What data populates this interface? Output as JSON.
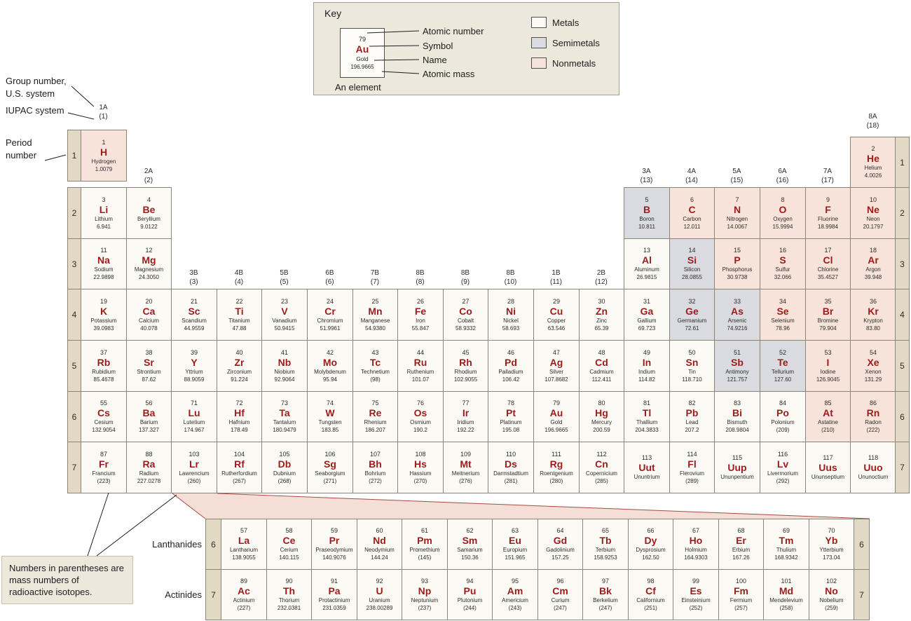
{
  "colors": {
    "metal": "#fbfaf4",
    "semimetal": "#d9dbe0",
    "nonmetal": "#f8e3da",
    "symbol_red": "#9e1b1b",
    "period_cell": "#e2d9c5",
    "box_bg": "#ece8db",
    "border": "#8b8577"
  },
  "key": {
    "title": "Key",
    "example": {
      "number": "79",
      "symbol": "Au",
      "name": "Gold",
      "mass": "196.9665"
    },
    "pointer_labels": [
      "Atomic number",
      "Symbol",
      "Name",
      "Atomic mass"
    ],
    "caption": "An element",
    "legend": [
      {
        "label": "Metals",
        "color": "#fbfaf4"
      },
      {
        "label": "Semimetals",
        "color": "#d9dbe0"
      },
      {
        "label": "Nonmetals",
        "color": "#f8e3da"
      }
    ]
  },
  "annotations": {
    "group_line1": "Group number,",
    "group_line2": "U.S. system",
    "iupac": "IUPAC system",
    "period_line1": "Period",
    "period_line2": "number",
    "note": "Numbers in parentheses are mass numbers of radioactive isotopes."
  },
  "f_block": {
    "lanthanides_label": "Lanthanides",
    "actinides_label": "Actinides",
    "lan_period": "6",
    "act_period": "7"
  },
  "period_rows": [
    "1",
    "2",
    "3",
    "4",
    "5",
    "6",
    "7"
  ],
  "group_labels": [
    {
      "us": "1A",
      "iupac": "(1)",
      "col": 1,
      "band": "r1"
    },
    {
      "us": "2A",
      "iupac": "(2)",
      "col": 2,
      "band": "r2"
    },
    {
      "us": "3B",
      "iupac": "(3)",
      "col": 3,
      "band": "r4"
    },
    {
      "us": "4B",
      "iupac": "(4)",
      "col": 4,
      "band": "r4"
    },
    {
      "us": "5B",
      "iupac": "(5)",
      "col": 5,
      "band": "r4"
    },
    {
      "us": "6B",
      "iupac": "(6)",
      "col": 6,
      "band": "r4"
    },
    {
      "us": "7B",
      "iupac": "(7)",
      "col": 7,
      "band": "r4"
    },
    {
      "us": "8B",
      "iupac": "(8)",
      "col": 8,
      "band": "r4"
    },
    {
      "us": "8B",
      "iupac": "(9)",
      "col": 9,
      "band": "r4"
    },
    {
      "us": "8B",
      "iupac": "(10)",
      "col": 10,
      "band": "r4"
    },
    {
      "us": "1B",
      "iupac": "(11)",
      "col": 11,
      "band": "r4"
    },
    {
      "us": "2B",
      "iupac": "(12)",
      "col": 12,
      "band": "r4"
    },
    {
      "us": "3A",
      "iupac": "(13)",
      "col": 13,
      "band": "r2"
    },
    {
      "us": "4A",
      "iupac": "(14)",
      "col": 14,
      "band": "r2"
    },
    {
      "us": "5A",
      "iupac": "(15)",
      "col": 15,
      "band": "r2"
    },
    {
      "us": "6A",
      "iupac": "(16)",
      "col": 16,
      "band": "r2"
    },
    {
      "us": "7A",
      "iupac": "(17)",
      "col": 17,
      "band": "r2"
    },
    {
      "us": "8A",
      "iupac": "(18)",
      "col": 18,
      "band": "he"
    }
  ],
  "elements": [
    {
      "z": "1",
      "sym": "H",
      "name": "Hydrogen",
      "mass": "1.0079",
      "cat": "n",
      "row": 1,
      "col": 1
    },
    {
      "z": "2",
      "sym": "He",
      "name": "Helium",
      "mass": "4.0026",
      "cat": "n",
      "row": 1,
      "col": 18
    },
    {
      "z": "3",
      "sym": "Li",
      "name": "Lithium",
      "mass": "6.941",
      "cat": "m",
      "row": 2,
      "col": 1
    },
    {
      "z": "4",
      "sym": "Be",
      "name": "Beryllium",
      "mass": "9.0122",
      "cat": "m",
      "row": 2,
      "col": 2
    },
    {
      "z": "5",
      "sym": "B",
      "name": "Boron",
      "mass": "10.811",
      "cat": "s",
      "row": 2,
      "col": 13
    },
    {
      "z": "6",
      "sym": "C",
      "name": "Carbon",
      "mass": "12.011",
      "cat": "n",
      "row": 2,
      "col": 14
    },
    {
      "z": "7",
      "sym": "N",
      "name": "Nitrogen",
      "mass": "14.0067",
      "cat": "n",
      "row": 2,
      "col": 15
    },
    {
      "z": "8",
      "sym": "O",
      "name": "Oxygen",
      "mass": "15.9994",
      "cat": "n",
      "row": 2,
      "col": 16
    },
    {
      "z": "9",
      "sym": "F",
      "name": "Fluorine",
      "mass": "18.9984",
      "cat": "n",
      "row": 2,
      "col": 17
    },
    {
      "z": "10",
      "sym": "Ne",
      "name": "Neon",
      "mass": "20.1797",
      "cat": "n",
      "row": 2,
      "col": 18
    },
    {
      "z": "11",
      "sym": "Na",
      "name": "Sodium",
      "mass": "22.9898",
      "cat": "m",
      "row": 3,
      "col": 1
    },
    {
      "z": "12",
      "sym": "Mg",
      "name": "Magnesium",
      "mass": "24.3050",
      "cat": "m",
      "row": 3,
      "col": 2
    },
    {
      "z": "13",
      "sym": "Al",
      "name": "Aluminum",
      "mass": "26.9815",
      "cat": "m",
      "row": 3,
      "col": 13
    },
    {
      "z": "14",
      "sym": "Si",
      "name": "Silicon",
      "mass": "28.0855",
      "cat": "s",
      "row": 3,
      "col": 14
    },
    {
      "z": "15",
      "sym": "P",
      "name": "Phosphorus",
      "mass": "30.9738",
      "cat": "n",
      "row": 3,
      "col": 15
    },
    {
      "z": "16",
      "sym": "S",
      "name": "Sulfur",
      "mass": "32.066",
      "cat": "n",
      "row": 3,
      "col": 16
    },
    {
      "z": "17",
      "sym": "Cl",
      "name": "Chlorine",
      "mass": "35.4527",
      "cat": "n",
      "row": 3,
      "col": 17
    },
    {
      "z": "18",
      "sym": "Ar",
      "name": "Argon",
      "mass": "39.948",
      "cat": "n",
      "row": 3,
      "col": 18
    },
    {
      "z": "19",
      "sym": "K",
      "name": "Potassium",
      "mass": "39.0983",
      "cat": "m",
      "row": 4,
      "col": 1
    },
    {
      "z": "20",
      "sym": "Ca",
      "name": "Calcium",
      "mass": "40.078",
      "cat": "m",
      "row": 4,
      "col": 2
    },
    {
      "z": "21",
      "sym": "Sc",
      "name": "Scandium",
      "mass": "44.9559",
      "cat": "m",
      "row": 4,
      "col": 3
    },
    {
      "z": "22",
      "sym": "Ti",
      "name": "Titanium",
      "mass": "47.88",
      "cat": "m",
      "row": 4,
      "col": 4
    },
    {
      "z": "23",
      "sym": "V",
      "name": "Vanadium",
      "mass": "50.9415",
      "cat": "m",
      "row": 4,
      "col": 5
    },
    {
      "z": "24",
      "sym": "Cr",
      "name": "Chromium",
      "mass": "51.9961",
      "cat": "m",
      "row": 4,
      "col": 6
    },
    {
      "z": "25",
      "sym": "Mn",
      "name": "Manganese",
      "mass": "54.9380",
      "cat": "m",
      "row": 4,
      "col": 7
    },
    {
      "z": "26",
      "sym": "Fe",
      "name": "Iron",
      "mass": "55.847",
      "cat": "m",
      "row": 4,
      "col": 8
    },
    {
      "z": "27",
      "sym": "Co",
      "name": "Cobalt",
      "mass": "58.9332",
      "cat": "m",
      "row": 4,
      "col": 9
    },
    {
      "z": "28",
      "sym": "Ni",
      "name": "Nickel",
      "mass": "58.693",
      "cat": "m",
      "row": 4,
      "col": 10
    },
    {
      "z": "29",
      "sym": "Cu",
      "name": "Copper",
      "mass": "63.546",
      "cat": "m",
      "row": 4,
      "col": 11
    },
    {
      "z": "30",
      "sym": "Zn",
      "name": "Zinc",
      "mass": "65.39",
      "cat": "m",
      "row": 4,
      "col": 12
    },
    {
      "z": "31",
      "sym": "Ga",
      "name": "Gallium",
      "mass": "69.723",
      "cat": "m",
      "row": 4,
      "col": 13
    },
    {
      "z": "32",
      "sym": "Ge",
      "name": "Germanium",
      "mass": "72.61",
      "cat": "s",
      "row": 4,
      "col": 14
    },
    {
      "z": "33",
      "sym": "As",
      "name": "Arsenic",
      "mass": "74.9216",
      "cat": "s",
      "row": 4,
      "col": 15
    },
    {
      "z": "34",
      "sym": "Se",
      "name": "Selenium",
      "mass": "78.96",
      "cat": "n",
      "row": 4,
      "col": 16
    },
    {
      "z": "35",
      "sym": "Br",
      "name": "Bromine",
      "mass": "79.904",
      "cat": "n",
      "row": 4,
      "col": 17
    },
    {
      "z": "36",
      "sym": "Kr",
      "name": "Krypton",
      "mass": "83.80",
      "cat": "n",
      "row": 4,
      "col": 18
    },
    {
      "z": "37",
      "sym": "Rb",
      "name": "Rubidium",
      "mass": "85.4678",
      "cat": "m",
      "row": 5,
      "col": 1
    },
    {
      "z": "38",
      "sym": "Sr",
      "name": "Strontium",
      "mass": "87.62",
      "cat": "m",
      "row": 5,
      "col": 2
    },
    {
      "z": "39",
      "sym": "Y",
      "name": "Yttrium",
      "mass": "88.9059",
      "cat": "m",
      "row": 5,
      "col": 3
    },
    {
      "z": "40",
      "sym": "Zr",
      "name": "Zirconium",
      "mass": "91.224",
      "cat": "m",
      "row": 5,
      "col": 4
    },
    {
      "z": "41",
      "sym": "Nb",
      "name": "Niobium",
      "mass": "92.9064",
      "cat": "m",
      "row": 5,
      "col": 5
    },
    {
      "z": "42",
      "sym": "Mo",
      "name": "Molybdenum",
      "mass": "95.94",
      "cat": "m",
      "row": 5,
      "col": 6
    },
    {
      "z": "43",
      "sym": "Tc",
      "name": "Technetium",
      "mass": "(98)",
      "cat": "m",
      "row": 5,
      "col": 7
    },
    {
      "z": "44",
      "sym": "Ru",
      "name": "Ruthenium",
      "mass": "101.07",
      "cat": "m",
      "row": 5,
      "col": 8
    },
    {
      "z": "45",
      "sym": "Rh",
      "name": "Rhodium",
      "mass": "102.9055",
      "cat": "m",
      "row": 5,
      "col": 9
    },
    {
      "z": "46",
      "sym": "Pd",
      "name": "Palladium",
      "mass": "106.42",
      "cat": "m",
      "row": 5,
      "col": 10
    },
    {
      "z": "47",
      "sym": "Ag",
      "name": "Silver",
      "mass": "107.8682",
      "cat": "m",
      "row": 5,
      "col": 11
    },
    {
      "z": "48",
      "sym": "Cd",
      "name": "Cadmium",
      "mass": "112.411",
      "cat": "m",
      "row": 5,
      "col": 12
    },
    {
      "z": "49",
      "sym": "In",
      "name": "Indium",
      "mass": "114.82",
      "cat": "m",
      "row": 5,
      "col": 13
    },
    {
      "z": "50",
      "sym": "Sn",
      "name": "Tin",
      "mass": "118.710",
      "cat": "m",
      "row": 5,
      "col": 14
    },
    {
      "z": "51",
      "sym": "Sb",
      "name": "Antimony",
      "mass": "121.757",
      "cat": "s",
      "row": 5,
      "col": 15
    },
    {
      "z": "52",
      "sym": "Te",
      "name": "Tellurium",
      "mass": "127.60",
      "cat": "s",
      "row": 5,
      "col": 16
    },
    {
      "z": "53",
      "sym": "I",
      "name": "Iodine",
      "mass": "126.9045",
      "cat": "n",
      "row": 5,
      "col": 17
    },
    {
      "z": "54",
      "sym": "Xe",
      "name": "Xenon",
      "mass": "131.29",
      "cat": "n",
      "row": 5,
      "col": 18
    },
    {
      "z": "55",
      "sym": "Cs",
      "name": "Cesium",
      "mass": "132.9054",
      "cat": "m",
      "row": 6,
      "col": 1
    },
    {
      "z": "56",
      "sym": "Ba",
      "name": "Barium",
      "mass": "137.327",
      "cat": "m",
      "row": 6,
      "col": 2
    },
    {
      "z": "71",
      "sym": "Lu",
      "name": "Lutetium",
      "mass": "174.967",
      "cat": "m",
      "row": 6,
      "col": 3
    },
    {
      "z": "72",
      "sym": "Hf",
      "name": "Hafnium",
      "mass": "178.49",
      "cat": "m",
      "row": 6,
      "col": 4
    },
    {
      "z": "73",
      "sym": "Ta",
      "name": "Tantalum",
      "mass": "180.9479",
      "cat": "m",
      "row": 6,
      "col": 5
    },
    {
      "z": "74",
      "sym": "W",
      "name": "Tungsten",
      "mass": "183.85",
      "cat": "m",
      "row": 6,
      "col": 6
    },
    {
      "z": "75",
      "sym": "Re",
      "name": "Rhenium",
      "mass": "186.207",
      "cat": "m",
      "row": 6,
      "col": 7
    },
    {
      "z": "76",
      "sym": "Os",
      "name": "Osmium",
      "mass": "190.2",
      "cat": "m",
      "row": 6,
      "col": 8
    },
    {
      "z": "77",
      "sym": "Ir",
      "name": "Iridium",
      "mass": "192.22",
      "cat": "m",
      "row": 6,
      "col": 9
    },
    {
      "z": "78",
      "sym": "Pt",
      "name": "Platinum",
      "mass": "195.08",
      "cat": "m",
      "row": 6,
      "col": 10
    },
    {
      "z": "79",
      "sym": "Au",
      "name": "Gold",
      "mass": "196.9665",
      "cat": "m",
      "row": 6,
      "col": 11
    },
    {
      "z": "80",
      "sym": "Hg",
      "name": "Mercury",
      "mass": "200.59",
      "cat": "m",
      "row": 6,
      "col": 12
    },
    {
      "z": "81",
      "sym": "Tl",
      "name": "Thallium",
      "mass": "204.3833",
      "cat": "m",
      "row": 6,
      "col": 13
    },
    {
      "z": "82",
      "sym": "Pb",
      "name": "Lead",
      "mass": "207.2",
      "cat": "m",
      "row": 6,
      "col": 14
    },
    {
      "z": "83",
      "sym": "Bi",
      "name": "Bismuth",
      "mass": "208.9804",
      "cat": "m",
      "row": 6,
      "col": 15
    },
    {
      "z": "84",
      "sym": "Po",
      "name": "Polonium",
      "mass": "(209)",
      "cat": "m",
      "row": 6,
      "col": 16
    },
    {
      "z": "85",
      "sym": "At",
      "name": "Astatine",
      "mass": "(210)",
      "cat": "n",
      "row": 6,
      "col": 17
    },
    {
      "z": "86",
      "sym": "Rn",
      "name": "Radon",
      "mass": "(222)",
      "cat": "n",
      "row": 6,
      "col": 18
    },
    {
      "z": "87",
      "sym": "Fr",
      "name": "Francium",
      "mass": "(223)",
      "cat": "m",
      "row": 7,
      "col": 1
    },
    {
      "z": "88",
      "sym": "Ra",
      "name": "Radium",
      "mass": "227.0278",
      "cat": "m",
      "row": 7,
      "col": 2
    },
    {
      "z": "103",
      "sym": "Lr",
      "name": "Lawrencium",
      "mass": "(260)",
      "cat": "m",
      "row": 7,
      "col": 3
    },
    {
      "z": "104",
      "sym": "Rf",
      "name": "Rutherfordium",
      "mass": "(267)",
      "cat": "m",
      "row": 7,
      "col": 4
    },
    {
      "z": "105",
      "sym": "Db",
      "name": "Dubnium",
      "mass": "(268)",
      "cat": "m",
      "row": 7,
      "col": 5
    },
    {
      "z": "106",
      "sym": "Sg",
      "name": "Seaborgium",
      "mass": "(271)",
      "cat": "m",
      "row": 7,
      "col": 6
    },
    {
      "z": "107",
      "sym": "Bh",
      "name": "Bohrium",
      "mass": "(272)",
      "cat": "m",
      "row": 7,
      "col": 7
    },
    {
      "z": "108",
      "sym": "Hs",
      "name": "Hassium",
      "mass": "(270)",
      "cat": "m",
      "row": 7,
      "col": 8
    },
    {
      "z": "109",
      "sym": "Mt",
      "name": "Meitnerium",
      "mass": "(276)",
      "cat": "m",
      "row": 7,
      "col": 9
    },
    {
      "z": "110",
      "sym": "Ds",
      "name": "Darmstadtium",
      "mass": "(281)",
      "cat": "m",
      "row": 7,
      "col": 10
    },
    {
      "z": "111",
      "sym": "Rg",
      "name": "Roentgenium",
      "mass": "(280)",
      "cat": "m",
      "row": 7,
      "col": 11
    },
    {
      "z": "112",
      "sym": "Cn",
      "name": "Copernicium",
      "mass": "(285)",
      "cat": "m",
      "row": 7,
      "col": 12
    },
    {
      "z": "113",
      "sym": "Uut",
      "name": "Ununtrium",
      "mass": "",
      "cat": "m",
      "row": 7,
      "col": 13
    },
    {
      "z": "114",
      "sym": "Fl",
      "name": "Flerovium",
      "mass": "(289)",
      "cat": "m",
      "row": 7,
      "col": 14
    },
    {
      "z": "115",
      "sym": "Uup",
      "name": "Ununpentium",
      "mass": "",
      "cat": "m",
      "row": 7,
      "col": 15
    },
    {
      "z": "116",
      "sym": "Lv",
      "name": "Livermorium",
      "mass": "(292)",
      "cat": "m",
      "row": 7,
      "col": 16
    },
    {
      "z": "117",
      "sym": "Uus",
      "name": "Ununseptium",
      "mass": "",
      "cat": "m",
      "row": 7,
      "col": 17
    },
    {
      "z": "118",
      "sym": "Uuo",
      "name": "Ununoctium",
      "mass": "",
      "cat": "m",
      "row": 7,
      "col": 18
    }
  ],
  "lanthanides": [
    {
      "z": "57",
      "sym": "La",
      "name": "Lanthanum",
      "mass": "138.9055",
      "cat": "m"
    },
    {
      "z": "58",
      "sym": "Ce",
      "name": "Cerium",
      "mass": "140.115",
      "cat": "m"
    },
    {
      "z": "59",
      "sym": "Pr",
      "name": "Praseodymium",
      "mass": "140.9076",
      "cat": "m"
    },
    {
      "z": "60",
      "sym": "Nd",
      "name": "Neodymium",
      "mass": "144.24",
      "cat": "m"
    },
    {
      "z": "61",
      "sym": "Pm",
      "name": "Promethium",
      "mass": "(145)",
      "cat": "m"
    },
    {
      "z": "62",
      "sym": "Sm",
      "name": "Samarium",
      "mass": "150.36",
      "cat": "m"
    },
    {
      "z": "63",
      "sym": "Eu",
      "name": "Europium",
      "mass": "151.965",
      "cat": "m"
    },
    {
      "z": "64",
      "sym": "Gd",
      "name": "Gadolinium",
      "mass": "157.25",
      "cat": "m"
    },
    {
      "z": "65",
      "sym": "Tb",
      "name": "Terbium",
      "mass": "158.9253",
      "cat": "m"
    },
    {
      "z": "66",
      "sym": "Dy",
      "name": "Dysprosium",
      "mass": "162.50",
      "cat": "m"
    },
    {
      "z": "67",
      "sym": "Ho",
      "name": "Holmium",
      "mass": "164.9303",
      "cat": "m"
    },
    {
      "z": "68",
      "sym": "Er",
      "name": "Erbium",
      "mass": "167.26",
      "cat": "m"
    },
    {
      "z": "69",
      "sym": "Tm",
      "name": "Thulium",
      "mass": "168.9342",
      "cat": "m"
    },
    {
      "z": "70",
      "sym": "Yb",
      "name": "Ytterbium",
      "mass": "173.04",
      "cat": "m"
    }
  ],
  "actinides": [
    {
      "z": "89",
      "sym": "Ac",
      "name": "Actinium",
      "mass": "(227)",
      "cat": "m"
    },
    {
      "z": "90",
      "sym": "Th",
      "name": "Thorium",
      "mass": "232.0381",
      "cat": "m"
    },
    {
      "z": "91",
      "sym": "Pa",
      "name": "Protactinium",
      "mass": "231.0359",
      "cat": "m"
    },
    {
      "z": "92",
      "sym": "U",
      "name": "Uranium",
      "mass": "238.00289",
      "cat": "m"
    },
    {
      "z": "93",
      "sym": "Np",
      "name": "Neptunium",
      "mass": "(237)",
      "cat": "m"
    },
    {
      "z": "94",
      "sym": "Pu",
      "name": "Plutonium",
      "mass": "(244)",
      "cat": "m"
    },
    {
      "z": "95",
      "sym": "Am",
      "name": "Americium",
      "mass": "(243)",
      "cat": "m"
    },
    {
      "z": "96",
      "sym": "Cm",
      "name": "Curium",
      "mass": "(247)",
      "cat": "m"
    },
    {
      "z": "97",
      "sym": "Bk",
      "name": "Berkelium",
      "mass": "(247)",
      "cat": "m"
    },
    {
      "z": "98",
      "sym": "Cf",
      "name": "Californium",
      "mass": "(251)",
      "cat": "m"
    },
    {
      "z": "99",
      "sym": "Es",
      "name": "Einsteinium",
      "mass": "(252)",
      "cat": "m"
    },
    {
      "z": "100",
      "sym": "Fm",
      "name": "Fermium",
      "mass": "(257)",
      "cat": "m"
    },
    {
      "z": "101",
      "sym": "Md",
      "name": "Mendelevium",
      "mass": "(258)",
      "cat": "m"
    },
    {
      "z": "102",
      "sym": "No",
      "name": "Nobelium",
      "mass": "(259)",
      "cat": "m"
    }
  ]
}
